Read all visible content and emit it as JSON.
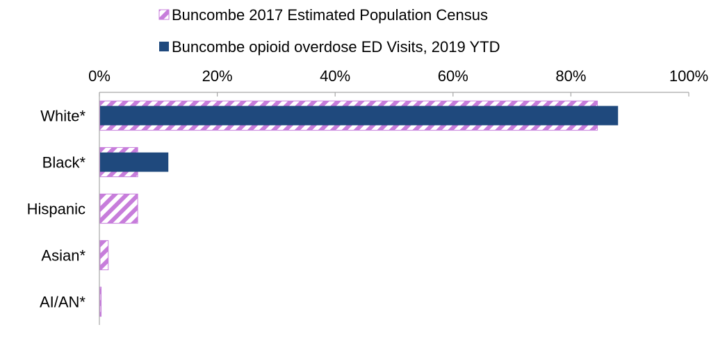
{
  "chart_data": {
    "type": "bar",
    "orientation": "horizontal",
    "categories": [
      "White*",
      "Black*",
      "Hispanic",
      "Asian*",
      "AI/AN*"
    ],
    "series": [
      {
        "name": "Buncombe 2017 Estimated Population Census",
        "values": [
          84.5,
          6.5,
          6.5,
          1.5,
          0.3
        ],
        "fill": "hatch",
        "color": "#c77ddb"
      },
      {
        "name": "Buncombe opioid overdose ED Visits, 2019 YTD",
        "values": [
          88.0,
          11.7,
          0,
          0,
          0
        ],
        "fill": "solid",
        "color": "#1f497d"
      }
    ],
    "xlim": [
      0,
      100
    ],
    "x_ticks": [
      "0%",
      "20%",
      "40%",
      "60%",
      "80%",
      "100%"
    ],
    "x_axis_position": "top",
    "legend_placement": "top-center",
    "grid": false,
    "title": "",
    "xlabel": "",
    "ylabel": ""
  }
}
